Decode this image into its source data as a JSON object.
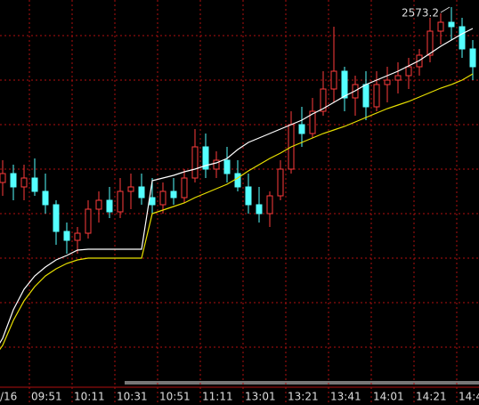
{
  "chart_data": {
    "type": "candlestick",
    "categories": [
      "/16",
      null,
      null,
      null,
      "09:51",
      null,
      null,
      null,
      "10:11",
      null,
      null,
      null,
      "10:31",
      null,
      null,
      null,
      "10:51",
      null,
      null,
      null,
      "11:11",
      null,
      null,
      null,
      "13:01",
      null,
      null,
      null,
      "13:21",
      null,
      null,
      null,
      "13:41",
      null,
      null,
      null,
      "14:01",
      null,
      null,
      null,
      "14:21",
      null,
      null,
      null,
      "14:4",
      null
    ],
    "open": [
      2554,
      2553.5,
      2554.5,
      2553,
      2554,
      2552.5,
      2551,
      2548,
      2547,
      2547.8,
      2550.5,
      2551.5,
      2550.2,
      2552.5,
      2553,
      2551.8,
      2551,
      2552.5,
      2551.8,
      2554,
      2557.5,
      2555,
      2556,
      2554.5,
      2553,
      2551,
      2550,
      2552,
      2555,
      2560,
      2559,
      2561.5,
      2564,
      2566,
      2563,
      2564.5,
      2562,
      2564.5,
      2565,
      2565.5,
      2566.5,
      2567.8,
      2570.5,
      2571.5,
      2571,
      2568.5
    ],
    "high": [
      2555,
      2556,
      2555.5,
      2555.5,
      2556.2,
      2554.5,
      2551.5,
      2549,
      2548.5,
      2551.5,
      2552.5,
      2553,
      2554,
      2554.5,
      2554.5,
      2554,
      2553.5,
      2554,
      2555,
      2559.5,
      2559,
      2557,
      2557.5,
      2556,
      2554.5,
      2553,
      2552.5,
      2556,
      2561.5,
      2562,
      2563,
      2566,
      2571,
      2566.5,
      2565.5,
      2566,
      2566,
      2566.5,
      2567,
      2567.5,
      2568.5,
      2572,
      2572.5,
      2573.2,
      2572,
      2569.5
    ],
    "low": [
      2552.5,
      2552,
      2551.5,
      2551.5,
      2552,
      2550,
      2546.5,
      2545.5,
      2545.5,
      2547.2,
      2549,
      2549.5,
      2549.5,
      2550.5,
      2551,
      2550,
      2550,
      2551,
      2551.2,
      2553.5,
      2554,
      2554,
      2553.5,
      2552.5,
      2550,
      2549,
      2548.5,
      2551.5,
      2554.5,
      2557.5,
      2558.5,
      2561,
      2562.5,
      2561.5,
      2561,
      2560.5,
      2561.5,
      2562.5,
      2563.5,
      2564,
      2565.5,
      2567,
      2569,
      2569.5,
      2567.5,
      2565
    ],
    "close": [
      2553.5,
      2554.5,
      2553,
      2554,
      2552.5,
      2551,
      2548,
      2547,
      2547.8,
      2550.5,
      2551.5,
      2550.2,
      2552.5,
      2553,
      2551.8,
      2551,
      2552.5,
      2551.8,
      2554,
      2557.5,
      2555,
      2556,
      2554.5,
      2553,
      2551,
      2550,
      2552,
      2555,
      2560,
      2559,
      2561.5,
      2564,
      2566,
      2563,
      2564.5,
      2562,
      2564.5,
      2565,
      2565.5,
      2566.5,
      2567.8,
      2570.5,
      2571.5,
      2571,
      2568.5,
      2566.5
    ],
    "up_color": "#ff3b3b",
    "down_color": "#54ffff",
    "lines": [
      {
        "color": "#ffffff",
        "values": [
          2534,
          2536,
          2539.2,
          2541.5,
          2543,
          2544,
          2544.8,
          2545.3,
          2545.9,
          2546,
          2546,
          2546,
          2546,
          2546,
          2546,
          2553.7,
          2554,
          2554.3,
          2554.7,
          2555,
          2555.4,
          2555.7,
          2556.2,
          2557.2,
          2558,
          2558.5,
          2559,
          2559.5,
          2560,
          2560.5,
          2561.2,
          2561.8,
          2562.5,
          2563.2,
          2563.8,
          2564.5,
          2565,
          2565.5,
          2566,
          2566.6,
          2567.2,
          2568,
          2568.8,
          2569.5,
          2570.2,
          2570.8
        ]
      },
      {
        "color": "#e8e000",
        "values": [
          2533.5,
          2535.2,
          2538,
          2540.2,
          2541.8,
          2543,
          2543.8,
          2544.4,
          2544.8,
          2545,
          2545,
          2545,
          2545,
          2545,
          2545,
          2550,
          2550.4,
          2550.8,
          2551.2,
          2551.8,
          2552.3,
          2552.8,
          2553.3,
          2554,
          2554.8,
          2555.5,
          2556.2,
          2556.8,
          2557.5,
          2558,
          2558.5,
          2559,
          2559.4,
          2559.8,
          2560.3,
          2560.8,
          2561.3,
          2561.8,
          2562.2,
          2562.6,
          2563.1,
          2563.6,
          2564.1,
          2564.5,
          2565,
          2565.7
        ]
      }
    ],
    "max_label": "2573.2",
    "ylim": [
      2530.5,
      2574
    ],
    "ygrid": [
      2570,
      2565,
      2560,
      2555,
      2550,
      2545,
      2540,
      2535
    ],
    "grid_color": "#b01010"
  }
}
